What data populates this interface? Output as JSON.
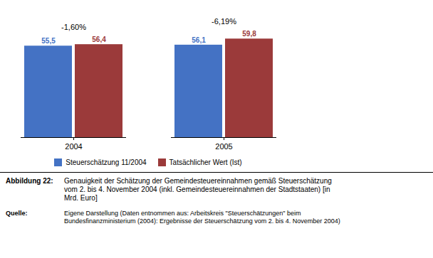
{
  "chart_data": {
    "type": "bar",
    "categories": [
      "2004",
      "2005"
    ],
    "series": [
      {
        "name": "Steuerschätzung 11/2004",
        "color": "#4472C4",
        "values": [
          55.5,
          56.1
        ],
        "value_labels": [
          "55,5",
          "56,1"
        ]
      },
      {
        "name": "Tatsächlicher Wert (Ist)",
        "color": "#9B3A3A",
        "values": [
          56.4,
          59.8
        ],
        "value_labels": [
          "56,4",
          "59,8"
        ]
      }
    ],
    "ylim": [
      0,
      72
    ],
    "data_labels": true,
    "tick_labels": "x",
    "grid": false,
    "legend": "bottom",
    "annotations": [
      {
        "category": "2004",
        "text": "-1,60%"
      },
      {
        "category": "2005",
        "text": "-6,19%"
      }
    ],
    "caption": {
      "label": "Abbildung 22:",
      "text": "Genauigkeit der Schätzung der Gemeindesteuereinnahmen gemäß Steuerschätzung\nvom 2. bis 4. November 2004 (inkl. Gemeindesteuereinnahmen der Stadtstaaten) [in\nMrd. Euro]"
    },
    "source": {
      "label": "Quelle:",
      "text": "Eigene Darstellung (Daten entnommen aus: Arbeitskreis \"Steuerschätzungen\" beim\nBundesfinanzministerium (2004): Ergebnisse der Steuerschätzung vom 2. bis 4. November 2004)"
    }
  }
}
